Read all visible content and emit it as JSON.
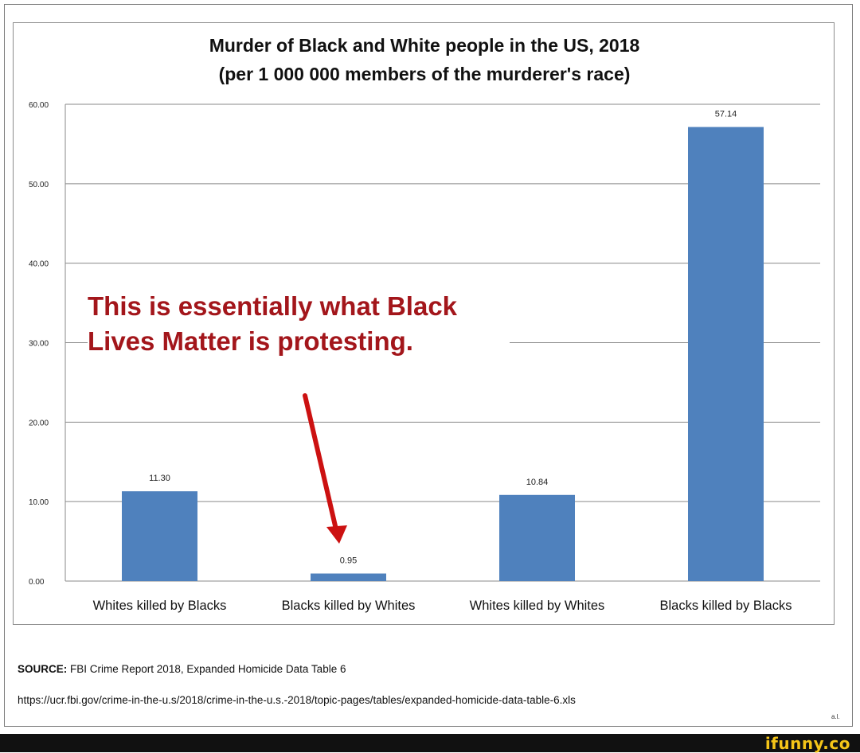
{
  "title_line1": "Murder of Black and White people in the US, 2018",
  "title_line2": "(per 1 000 000 members of the murderer's race)",
  "annotation": "This is essentially what Black Lives Matter is protesting.",
  "source_label": "SOURCE:",
  "source_text": "FBI Crime Report 2018, Expanded Homicide Data Table 6",
  "source_url": "https://ucr.fbi.gov/crime-in-the-u.s/2018/crime-in-the-u.s.-2018/topic-pages/tables/expanded-homicide-data-table-6.xls",
  "corner_mark": "a.l.",
  "watermark": "ifunny.co",
  "colors": {
    "bar": "#4f81bd",
    "arrow": "#cc1111",
    "annotation": "#a3161b",
    "footer": "#111111"
  },
  "chart_data": {
    "type": "bar",
    "categories": [
      "Whites killed by Blacks",
      "Blacks killed by Whites",
      "Whites killed by Whites",
      "Blacks killed by Blacks"
    ],
    "values": [
      11.3,
      0.95,
      10.84,
      57.14
    ],
    "value_labels": [
      "11.30",
      "0.95",
      "10.84",
      "57.14"
    ],
    "yticks": [
      "0.00",
      "10.00",
      "20.00",
      "30.00",
      "40.00",
      "50.00",
      "60.00"
    ],
    "ylim": [
      0,
      60
    ],
    "grid": true,
    "legend": "none"
  }
}
